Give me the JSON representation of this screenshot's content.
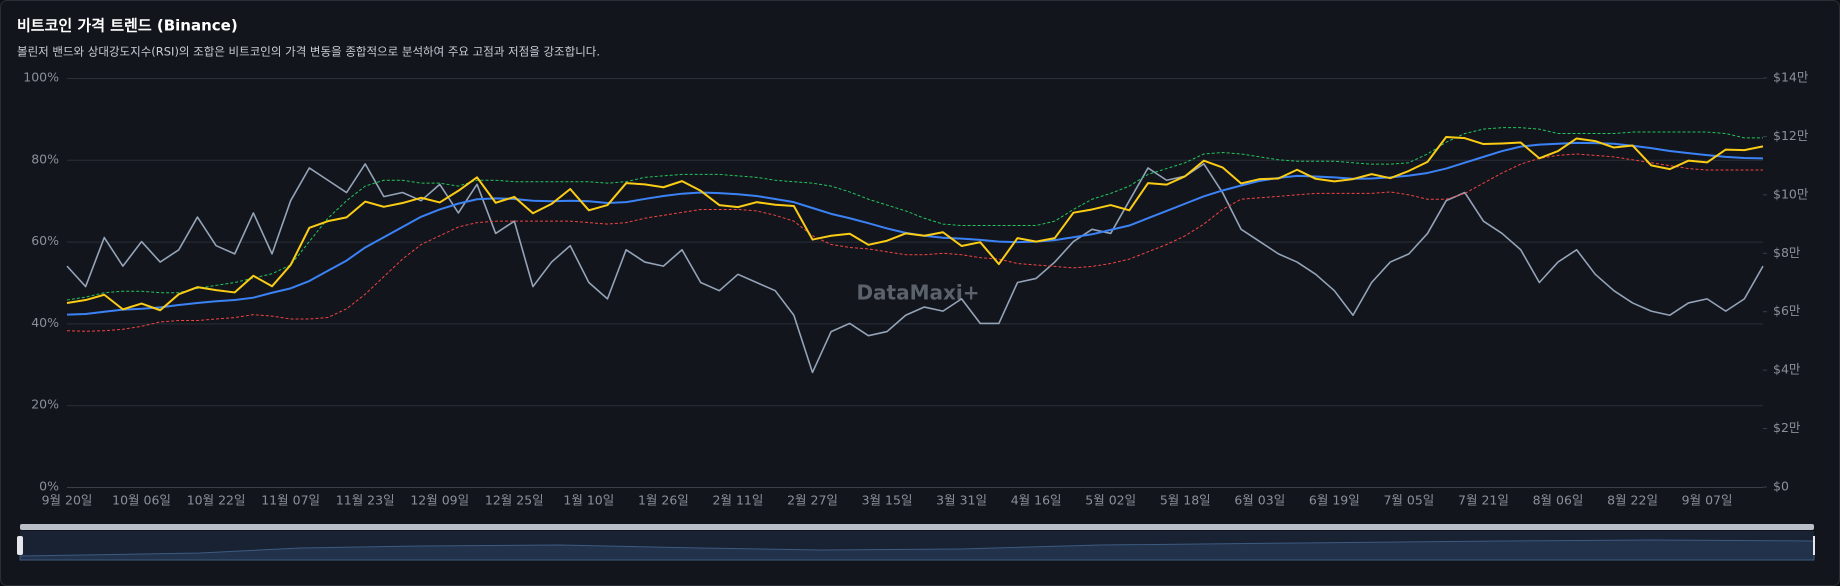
{
  "chart_data": {
    "type": "line",
    "title": "비트코인 가격 트렌드 (Binance)",
    "subtitle": "볼린저 밴드와 상대강도지수(RSI)의 조합은 비트코인의 가격 변동을 종합적으로 분석하여 주요 고점과 저점을 강조합니다.",
    "watermark": "DataMaxi+",
    "categories": [
      "9월 20일",
      null,
      null,
      null,
      "10월 06일",
      null,
      null,
      null,
      "10월 22일",
      null,
      null,
      null,
      "11월 07일",
      null,
      null,
      null,
      "11월 23일",
      null,
      null,
      null,
      "12월 09일",
      null,
      null,
      null,
      "12월 25일",
      null,
      null,
      null,
      "1월 10일",
      null,
      null,
      null,
      "1월 26일",
      null,
      null,
      null,
      "2월 11일",
      null,
      null,
      null,
      "2월 27일",
      null,
      null,
      null,
      "3월 15일",
      null,
      null,
      null,
      "3월 31일",
      null,
      null,
      null,
      "4월 16일",
      null,
      null,
      null,
      "5월 02일",
      null,
      null,
      null,
      "5월 18일",
      null,
      null,
      null,
      "6월 03일",
      null,
      null,
      null,
      "6월 19일",
      null,
      null,
      null,
      "7월 05일",
      null,
      null,
      null,
      "7월 21일",
      null,
      null,
      null,
      "8월 06일",
      null,
      null,
      null,
      "8월 22일",
      null,
      null,
      null,
      "9월 07일",
      null,
      null,
      null
    ],
    "ylim": [
      0,
      100
    ],
    "yticks": [
      {
        "value": 0,
        "label": "0%"
      },
      {
        "value": 20,
        "label": "20%"
      },
      {
        "value": 40,
        "label": "40%"
      },
      {
        "value": 60,
        "label": "60%"
      },
      {
        "value": 80,
        "label": "80%"
      },
      {
        "value": 100,
        "label": "100%"
      }
    ],
    "y2lim": [
      0,
      140000
    ],
    "y2ticks": [
      {
        "value": 0,
        "label": "$0"
      },
      {
        "value": 20000,
        "label": "$2만"
      },
      {
        "value": 40000,
        "label": "$4만"
      },
      {
        "value": 60000,
        "label": "$6만"
      },
      {
        "value": 80000,
        "label": "$8만"
      },
      {
        "value": 100000,
        "label": "$10만"
      },
      {
        "value": 120000,
        "label": "$12만"
      },
      {
        "value": 140000,
        "label": "$14만"
      }
    ],
    "grid": true,
    "series": [
      {
        "color": "#94a3b8",
        "axis": "y",
        "dashed": false,
        "width": 1.6,
        "values": [
          54,
          49,
          61,
          54,
          60,
          55,
          58,
          66,
          59,
          57,
          67,
          57,
          70,
          78,
          75,
          72,
          79,
          71,
          72,
          70,
          74,
          67,
          74,
          62,
          65,
          49,
          55,
          59,
          50,
          46,
          58,
          55,
          54,
          58,
          50,
          48,
          52,
          50,
          48,
          42,
          28,
          38,
          40,
          37,
          38,
          42,
          44,
          43,
          46,
          40,
          40,
          50,
          51,
          55,
          60,
          63,
          62,
          70,
          78,
          75,
          76,
          79,
          72,
          63,
          60,
          57,
          55,
          52,
          48,
          42,
          50,
          55,
          57,
          62,
          70,
          72,
          65,
          62,
          58,
          50,
          55,
          58,
          52,
          48,
          45,
          43,
          42,
          45,
          46,
          43,
          46,
          54
        ]
      },
      {
        "color": "#22c55e",
        "axis": "y2",
        "dashed": true,
        "width": 1,
        "values": [
          64000,
          65000,
          66500,
          67000,
          67000,
          66500,
          66500,
          68000,
          69000,
          70000,
          71500,
          73000,
          76000,
          84000,
          92000,
          98000,
          103000,
          105000,
          105000,
          104000,
          104000,
          103000,
          105000,
          105000,
          104500,
          104500,
          104500,
          104500,
          104500,
          104000,
          104500,
          106000,
          106500,
          107000,
          107000,
          107000,
          106500,
          106000,
          105000,
          104500,
          104000,
          103000,
          101000,
          98500,
          96500,
          94500,
          92000,
          90000,
          89500,
          89500,
          89500,
          89500,
          89500,
          91000,
          95000,
          98500,
          100500,
          103000,
          107000,
          109000,
          111000,
          114000,
          114500,
          114000,
          113000,
          112000,
          111500,
          111500,
          111500,
          111000,
          110500,
          110500,
          111000,
          114000,
          118000,
          121000,
          122500,
          123000,
          123000,
          122500,
          121000,
          121000,
          121000,
          121000,
          121500,
          121500,
          121500,
          121500,
          121500,
          121000,
          119500,
          119500
        ]
      },
      {
        "color": "#ef4444",
        "axis": "y2",
        "dashed": true,
        "width": 1,
        "values": [
          53500,
          53300,
          53500,
          54000,
          55000,
          56500,
          57000,
          57000,
          57500,
          58000,
          59000,
          58500,
          57500,
          57500,
          58000,
          61000,
          66000,
          72000,
          78000,
          83000,
          86000,
          89000,
          90500,
          91000,
          91000,
          91000,
          91000,
          91000,
          90500,
          90000,
          90500,
          92000,
          93000,
          94000,
          95000,
          95000,
          95000,
          94500,
          93000,
          91000,
          86000,
          83000,
          82000,
          81500,
          80500,
          79500,
          79500,
          80000,
          79500,
          78500,
          78000,
          76500,
          76000,
          75500,
          75000,
          75500,
          76500,
          78000,
          80500,
          83000,
          86000,
          90000,
          95000,
          98500,
          99000,
          99500,
          100000,
          100500,
          100500,
          100500,
          100500,
          101000,
          100000,
          98500,
          98500,
          100500,
          104000,
          107500,
          110500,
          112500,
          113500,
          114000,
          113500,
          113000,
          112000,
          111000,
          110000,
          109000,
          108500,
          108500,
          108500,
          108500
        ]
      },
      {
        "color": "#3b82f6",
        "axis": "y2",
        "dashed": false,
        "width": 2,
        "values": [
          59000,
          59200,
          60000,
          60700,
          61000,
          61500,
          62300,
          63000,
          63600,
          64000,
          64800,
          66500,
          68000,
          70500,
          74000,
          77500,
          82000,
          85500,
          89000,
          92500,
          95000,
          97000,
          98500,
          98800,
          98600,
          98000,
          97800,
          98000,
          97800,
          97200,
          97500,
          98600,
          99600,
          100400,
          100800,
          100600,
          100200,
          99600,
          98600,
          97500,
          95500,
          93500,
          92000,
          90300,
          88500,
          87000,
          86000,
          85300,
          85000,
          84600,
          84000,
          83800,
          84000,
          84500,
          85500,
          86500,
          88000,
          89500,
          92000,
          94500,
          97000,
          99500,
          101500,
          103200,
          104800,
          105800,
          106500,
          106300,
          106000,
          105500,
          105600,
          106000,
          106600,
          107500,
          109000,
          111000,
          113000,
          115000,
          116500,
          117200,
          117500,
          117800,
          117700,
          117500,
          116800,
          116000,
          115000,
          114300,
          113600,
          113000,
          112600,
          112500
        ]
      },
      {
        "color": "#facc15",
        "axis": "y2",
        "dashed": false,
        "width": 2,
        "values": [
          63000,
          64000,
          65800,
          60800,
          62800,
          60500,
          66000,
          68400,
          67400,
          66600,
          72300,
          68700,
          76000,
          88700,
          91000,
          92300,
          97700,
          95900,
          97200,
          99000,
          97400,
          101400,
          106000,
          97300,
          99300,
          93700,
          96900,
          102000,
          94700,
          96500,
          104000,
          103600,
          102600,
          104700,
          101400,
          96500,
          95800,
          97500,
          96600,
          96200,
          84700,
          86000,
          86700,
          82900,
          84300,
          86800,
          86000,
          87200,
          82500,
          83800,
          76300,
          85200,
          84000,
          85200,
          93900,
          95000,
          96500,
          94700,
          104000,
          103500,
          106400,
          111700,
          109400,
          103900,
          105400,
          105600,
          108600,
          105500,
          104600,
          105400,
          107100,
          105700,
          108200,
          111300,
          119800,
          119400,
          117400,
          117600,
          117900,
          112500,
          115000,
          119300,
          118400,
          116200,
          116900,
          110100,
          108800,
          111700,
          111100,
          115500,
          115300,
          116600
        ]
      }
    ]
  }
}
